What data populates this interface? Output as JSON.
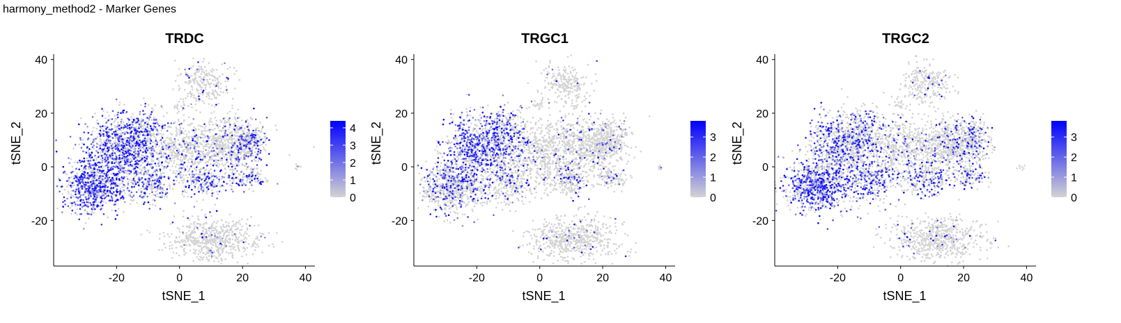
{
  "page_title": "harmony_method2 - Marker Genes",
  "chart_data": [
    {
      "type": "scatter",
      "title": "TRDC",
      "xlabel": "tSNE_1",
      "ylabel": "tSNE_2",
      "xlim": [
        -40,
        43
      ],
      "ylim": [
        -37,
        42
      ],
      "xticks": [
        -20,
        0,
        20,
        40
      ],
      "yticks": [
        -20,
        0,
        20,
        40
      ],
      "colorbar": {
        "min": 0,
        "max": 4.4,
        "ticks": [
          0,
          1,
          2,
          3,
          4
        ],
        "low_color": "#d3d3d3",
        "high_color": "#0000ff"
      },
      "clusters": [
        {
          "cx": -27,
          "cy": -7,
          "sx": 5,
          "sy": 5,
          "weight": 1400,
          "expr": 0.62
        },
        {
          "cx": -18,
          "cy": 8,
          "sx": 6,
          "sy": 6,
          "weight": 1600,
          "expr": 0.58
        },
        {
          "cx": -11,
          "cy": 14,
          "sx": 3,
          "sy": 4,
          "weight": 300,
          "expr": 0.45
        },
        {
          "cx": -10,
          "cy": -6,
          "sx": 4,
          "sy": 4,
          "weight": 500,
          "expr": 0.38
        },
        {
          "cx": 0,
          "cy": 6,
          "sx": 5,
          "sy": 6,
          "weight": 800,
          "expr": 0.15
        },
        {
          "cx": 8,
          "cy": -5,
          "sx": 4,
          "sy": 3,
          "weight": 400,
          "expr": 0.42
        },
        {
          "cx": 15,
          "cy": 8,
          "sx": 6,
          "sy": 5,
          "weight": 1100,
          "expr": 0.12
        },
        {
          "cx": 22,
          "cy": 10,
          "sx": 3,
          "sy": 4,
          "weight": 450,
          "expr": 0.32
        },
        {
          "cx": 22,
          "cy": -4,
          "sx": 3,
          "sy": 2,
          "weight": 200,
          "expr": 0.45
        },
        {
          "cx": 11,
          "cy": -27,
          "sx": 7,
          "sy": 4,
          "weight": 1100,
          "expr": 0.05
        },
        {
          "cx": 8,
          "cy": 31,
          "sx": 4,
          "sy": 4,
          "weight": 450,
          "expr": 0.08
        },
        {
          "cx": 0,
          "cy": 23,
          "sx": 1,
          "sy": 1,
          "weight": 30,
          "expr": 0.05
        },
        {
          "cx": 38,
          "cy": 0,
          "sx": 0.8,
          "sy": 0.5,
          "weight": 15,
          "expr": 0.05
        }
      ]
    },
    {
      "type": "scatter",
      "title": "TRGC1",
      "xlabel": "tSNE_1",
      "ylabel": "tSNE_2",
      "xlim": [
        -40,
        43
      ],
      "ylim": [
        -37,
        42
      ],
      "xticks": [
        -20,
        0,
        20,
        40
      ],
      "yticks": [
        -20,
        0,
        20,
        40
      ],
      "colorbar": {
        "min": 0,
        "max": 3.8,
        "ticks": [
          0,
          1,
          2,
          3
        ],
        "low_color": "#d3d3d3",
        "high_color": "#0000ff"
      },
      "clusters": [
        {
          "cx": -27,
          "cy": -7,
          "sx": 5,
          "sy": 5,
          "weight": 1400,
          "expr": 0.28
        },
        {
          "cx": -18,
          "cy": 8,
          "sx": 6,
          "sy": 6,
          "weight": 1600,
          "expr": 0.5
        },
        {
          "cx": -11,
          "cy": 14,
          "sx": 3,
          "sy": 4,
          "weight": 300,
          "expr": 0.42
        },
        {
          "cx": -10,
          "cy": -6,
          "sx": 4,
          "sy": 4,
          "weight": 500,
          "expr": 0.18
        },
        {
          "cx": 0,
          "cy": 6,
          "sx": 5,
          "sy": 6,
          "weight": 800,
          "expr": 0.08
        },
        {
          "cx": 8,
          "cy": -5,
          "sx": 4,
          "sy": 3,
          "weight": 400,
          "expr": 0.2
        },
        {
          "cx": 15,
          "cy": 8,
          "sx": 6,
          "sy": 5,
          "weight": 1100,
          "expr": 0.06
        },
        {
          "cx": 22,
          "cy": 10,
          "sx": 3,
          "sy": 4,
          "weight": 450,
          "expr": 0.1
        },
        {
          "cx": 22,
          "cy": -4,
          "sx": 3,
          "sy": 2,
          "weight": 200,
          "expr": 0.12
        },
        {
          "cx": 11,
          "cy": -27,
          "sx": 7,
          "sy": 4,
          "weight": 1100,
          "expr": 0.04
        },
        {
          "cx": 8,
          "cy": 31,
          "sx": 4,
          "sy": 4,
          "weight": 450,
          "expr": 0.04
        },
        {
          "cx": 0,
          "cy": 23,
          "sx": 1,
          "sy": 1,
          "weight": 30,
          "expr": 0.04
        },
        {
          "cx": 38,
          "cy": 0,
          "sx": 0.8,
          "sy": 0.5,
          "weight": 15,
          "expr": 0.04
        }
      ]
    },
    {
      "type": "scatter",
      "title": "TRGC2",
      "xlabel": "tSNE_1",
      "ylabel": "tSNE_2",
      "xlim": [
        -40,
        43
      ],
      "ylim": [
        -37,
        42
      ],
      "xticks": [
        -20,
        0,
        20,
        40
      ],
      "yticks": [
        -20,
        0,
        20,
        40
      ],
      "colorbar": {
        "min": 0,
        "max": 3.8,
        "ticks": [
          0,
          1,
          2,
          3
        ],
        "low_color": "#d3d3d3",
        "high_color": "#0000ff"
      },
      "clusters": [
        {
          "cx": -27,
          "cy": -7,
          "sx": 5,
          "sy": 5,
          "weight": 1400,
          "expr": 0.55
        },
        {
          "cx": -18,
          "cy": 8,
          "sx": 6,
          "sy": 6,
          "weight": 1600,
          "expr": 0.32
        },
        {
          "cx": -11,
          "cy": 14,
          "sx": 3,
          "sy": 4,
          "weight": 300,
          "expr": 0.35
        },
        {
          "cx": -10,
          "cy": -6,
          "sx": 4,
          "sy": 4,
          "weight": 500,
          "expr": 0.45
        },
        {
          "cx": 0,
          "cy": 6,
          "sx": 5,
          "sy": 6,
          "weight": 800,
          "expr": 0.12
        },
        {
          "cx": 8,
          "cy": -5,
          "sx": 4,
          "sy": 3,
          "weight": 400,
          "expr": 0.38
        },
        {
          "cx": 15,
          "cy": 8,
          "sx": 6,
          "sy": 5,
          "weight": 1100,
          "expr": 0.12
        },
        {
          "cx": 22,
          "cy": 10,
          "sx": 3,
          "sy": 4,
          "weight": 450,
          "expr": 0.3
        },
        {
          "cx": 22,
          "cy": -4,
          "sx": 3,
          "sy": 2,
          "weight": 200,
          "expr": 0.4
        },
        {
          "cx": 11,
          "cy": -27,
          "sx": 7,
          "sy": 4,
          "weight": 1100,
          "expr": 0.06
        },
        {
          "cx": 8,
          "cy": 31,
          "sx": 4,
          "sy": 4,
          "weight": 450,
          "expr": 0.08
        },
        {
          "cx": 0,
          "cy": 23,
          "sx": 1,
          "sy": 1,
          "weight": 30,
          "expr": 0.06
        },
        {
          "cx": 38,
          "cy": 0,
          "sx": 0.8,
          "sy": 0.5,
          "weight": 15,
          "expr": 0.06
        }
      ]
    }
  ]
}
